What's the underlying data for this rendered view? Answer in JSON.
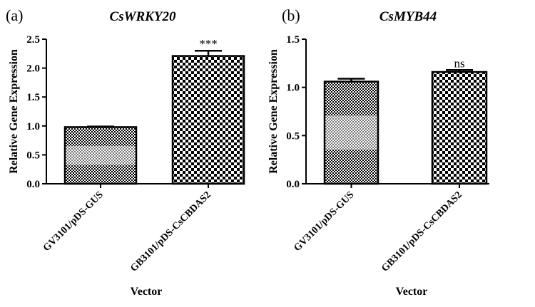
{
  "chart_data": [
    {
      "panel": "(a)",
      "title": "CsWRKY20",
      "type": "bar",
      "ylabel": "Relative Gene Expression",
      "xlabel": "Vector",
      "ylim": [
        0,
        2.5
      ],
      "yticks": [
        0.0,
        0.5,
        1.0,
        1.5,
        2.0,
        2.5
      ],
      "ytick_labels": [
        "0.0",
        "0.5",
        "1.0",
        "1.5",
        "2.0",
        "2.5"
      ],
      "categories": [
        "GV3101/pDS-GUS",
        "GB3101/pDS-CsCBDAS2"
      ],
      "values": [
        0.98,
        2.21
      ],
      "errors": [
        0.0,
        0.09
      ],
      "significance": [
        "",
        "***"
      ]
    },
    {
      "panel": "(b)",
      "title": "CsMYB44",
      "type": "bar",
      "ylabel": "Relative Gene Expression",
      "xlabel": "Vector",
      "ylim": [
        0,
        1.5
      ],
      "yticks": [
        0.0,
        0.5,
        1.0,
        1.5
      ],
      "ytick_labels": [
        "0.0",
        "0.5",
        "1.0",
        "1.5"
      ],
      "categories": [
        "GV3101/pDS-GUS",
        "GB3101/pDS-CsCBDAS2"
      ],
      "values": [
        1.06,
        1.16
      ],
      "errors": [
        0.03,
        0.02
      ],
      "significance": [
        "",
        "ns"
      ]
    }
  ]
}
